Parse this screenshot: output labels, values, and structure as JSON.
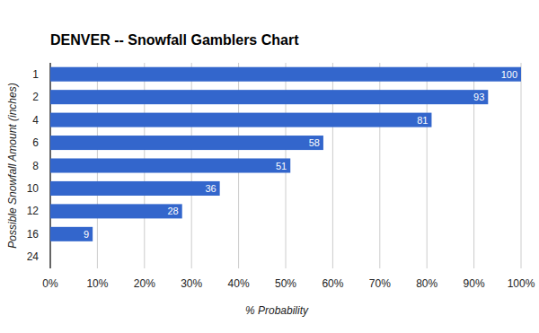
{
  "chart_data": {
    "type": "bar",
    "orientation": "horizontal",
    "title": "DENVER -- Snowfall Gamblers Chart",
    "x_label": "% Probability",
    "y_label": "Possible Snowfall Amount (inches)",
    "categories": [
      "1",
      "2",
      "4",
      "6",
      "8",
      "10",
      "12",
      "16",
      "24"
    ],
    "values": [
      100,
      93,
      81,
      58,
      51,
      36,
      28,
      9,
      0
    ],
    "color": "#3366cc",
    "xlim": [
      0,
      100
    ],
    "xticks": [
      {
        "value": 0,
        "label": "0%"
      },
      {
        "value": 10,
        "label": "10%"
      },
      {
        "value": 20,
        "label": "20%"
      },
      {
        "value": 30,
        "label": "30%"
      },
      {
        "value": 40,
        "label": "40%"
      },
      {
        "value": 50,
        "label": "50%"
      },
      {
        "value": 60,
        "label": "60%"
      },
      {
        "value": 70,
        "label": "70%"
      },
      {
        "value": 80,
        "label": "80%"
      },
      {
        "value": 90,
        "label": "90%"
      },
      {
        "value": 100,
        "label": "100%"
      }
    ],
    "grid": true,
    "data_labels": true
  }
}
